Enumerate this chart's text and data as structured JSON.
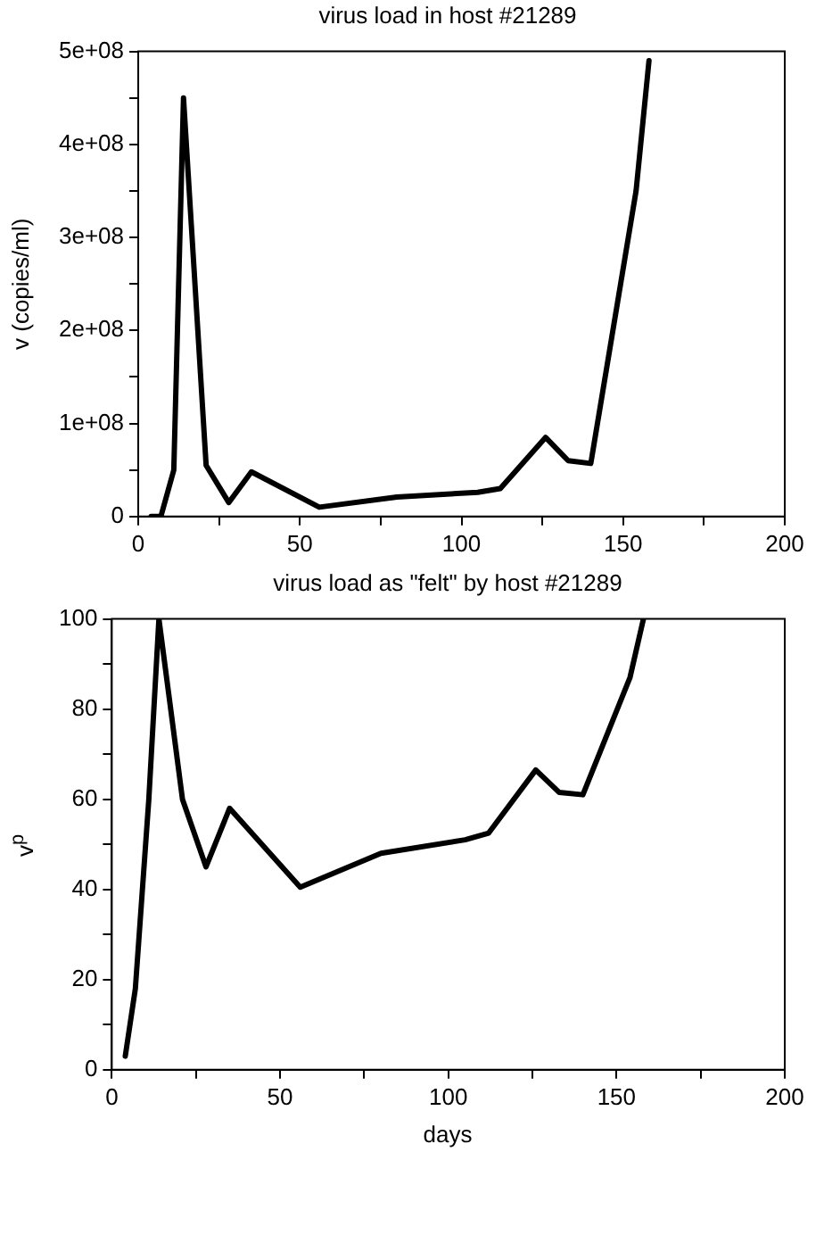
{
  "chart_data": [
    {
      "type": "line",
      "title": "virus load in host #21289",
      "ylabel": "v (copies/ml)",
      "x": [
        4,
        7,
        11,
        14,
        21,
        28,
        35,
        56,
        80,
        105,
        112,
        126,
        133,
        140,
        154,
        158
      ],
      "series": [
        {
          "color": "#000000",
          "values": [
            0,
            0,
            50000000,
            450000000,
            55000000,
            15000000,
            48000000,
            10000000,
            21000000,
            26000000,
            30000000,
            85000000,
            60000000,
            57000000,
            350000000,
            490000000
          ]
        }
      ],
      "xlim": [
        0,
        200
      ],
      "xticks": [
        0,
        {
          "value": 25,
          "label": null
        },
        50,
        {
          "value": 75,
          "label": null
        },
        100,
        {
          "value": 125,
          "label": null
        },
        150,
        {
          "value": 175,
          "label": null
        },
        200
      ],
      "ylim": [
        0,
        500000000
      ],
      "yticks": [
        0,
        {
          "value": 50000000,
          "label": null
        },
        {
          "value": 100000000,
          "label": "1e+08"
        },
        {
          "value": 150000000,
          "label": null
        },
        {
          "value": 200000000,
          "label": "2e+08"
        },
        {
          "value": 250000000,
          "label": null
        },
        {
          "value": 300000000,
          "label": "3e+08"
        },
        {
          "value": 350000000,
          "label": null
        },
        {
          "value": 400000000,
          "label": "4e+08"
        },
        {
          "value": 450000000,
          "label": null
        },
        {
          "value": 500000000,
          "label": "5e+08"
        }
      ],
      "grid": false,
      "legend": false,
      "marker": "none",
      "line_style": "solid"
    },
    {
      "type": "line",
      "title": "virus load as \"felt\" by host #21289",
      "xlabel": "days",
      "ylabel": "v$^{p}$",
      "x": [
        4,
        7,
        11,
        14,
        21,
        28,
        35,
        56,
        80,
        105,
        112,
        126,
        133,
        140,
        154,
        158
      ],
      "series": [
        {
          "color": "#000000",
          "values": [
            3,
            18,
            60,
            100,
            60,
            45,
            58,
            40.5,
            48,
            51,
            52.5,
            66.5,
            61.5,
            61,
            87,
            100
          ]
        }
      ],
      "xlim": [
        0,
        200
      ],
      "xticks": [
        0,
        {
          "value": 25,
          "label": null
        },
        50,
        {
          "value": 75,
          "label": null
        },
        100,
        {
          "value": 125,
          "label": null
        },
        150,
        {
          "value": 175,
          "label": null
        },
        200
      ],
      "ylim": [
        0,
        100
      ],
      "yticks": [
        0,
        {
          "value": 10,
          "label": null
        },
        20,
        {
          "value": 30,
          "label": null
        },
        40,
        {
          "value": 50,
          "label": null
        },
        60,
        {
          "value": 70,
          "label": null
        },
        80,
        {
          "value": 90,
          "label": null
        },
        100
      ],
      "grid": false,
      "legend": false,
      "marker": "none",
      "line_style": "solid"
    }
  ]
}
